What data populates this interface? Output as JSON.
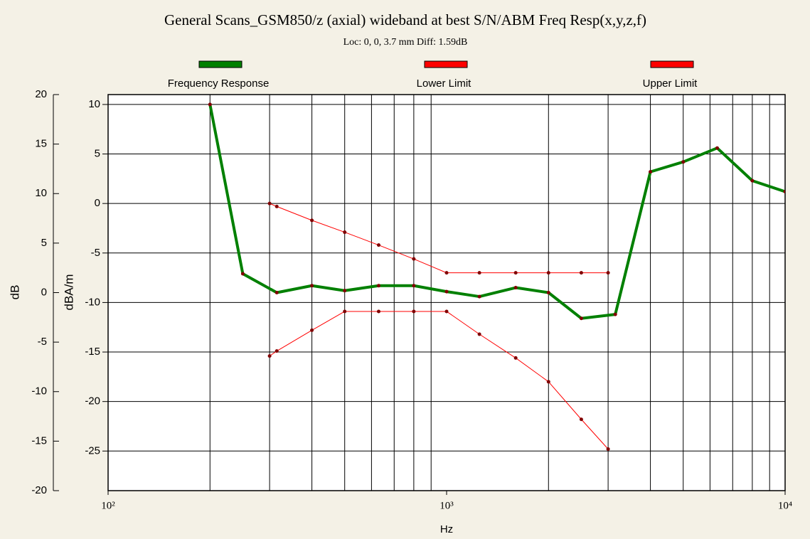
{
  "chart_data": {
    "type": "line",
    "title": "General Scans_GSM850/z (axial) wideband at best S/N/ABM Freq Resp(x,y,z,f)",
    "subtitle": "Loc: 0, 0, 3.7 mm Diff: 1.59dB",
    "x_label": "Hz",
    "y_label": "dBA/m",
    "y2_label": "dB",
    "log_x": true,
    "grid": true,
    "legend": "top",
    "xlim": [
      100,
      10000
    ],
    "xticks": [
      {
        "value": 100,
        "label": "10²"
      },
      {
        "value": 1000,
        "label": "10³"
      },
      {
        "value": 10000,
        "label": "10⁴"
      }
    ],
    "xminorticks": [
      200,
      300,
      400,
      500,
      600,
      700,
      800,
      900,
      2000,
      3000,
      4000,
      5000,
      6000,
      7000,
      8000,
      9000
    ],
    "ylim": [
      -29,
      11
    ],
    "yticks": [
      10,
      5,
      0,
      -5,
      -10,
      -15,
      -20,
      -25
    ],
    "y2lim": [
      -20,
      20
    ],
    "y2ticks": [
      20,
      15,
      10,
      5,
      0,
      -5,
      -10,
      -15,
      -20
    ],
    "series": [
      {
        "name": "Frequency Response",
        "color": "#008000",
        "width": 4,
        "x": [
          200,
          250,
          315,
          400,
          500,
          630,
          800,
          1000,
          1250,
          1600,
          2000,
          2500,
          3150,
          4000,
          5000,
          6300,
          8000,
          10000
        ],
        "values": [
          10,
          -7.1,
          -9.0,
          -8.3,
          -8.8,
          -8.3,
          -8.3,
          -8.9,
          -9.4,
          -8.5,
          -9.0,
          -11.6,
          -11.2,
          3.2,
          4.2,
          5.6,
          2.3,
          1.2
        ]
      },
      {
        "name": "Lower Limit",
        "color": "#ff0000",
        "width": 1,
        "x": [
          300,
          315,
          400,
          500,
          630,
          800,
          1000,
          1250,
          1600,
          2000,
          2500,
          3000
        ],
        "values": [
          -15.4,
          -14.9,
          -12.8,
          -10.9,
          -10.9,
          -10.9,
          -10.9,
          -13.2,
          -15.6,
          -18.0,
          -21.8,
          -24.8
        ]
      },
      {
        "name": "Upper Limit",
        "color": "#ff0000",
        "width": 1,
        "x": [
          300,
          315,
          400,
          500,
          630,
          800,
          1000,
          1250,
          1600,
          2000,
          2500,
          3000
        ],
        "values": [
          0,
          -0.3,
          -1.7,
          -2.9,
          -4.2,
          -5.6,
          -7.0,
          -7.0,
          -7.0,
          -7.0,
          -7.0,
          -7.0
        ]
      }
    ]
  }
}
